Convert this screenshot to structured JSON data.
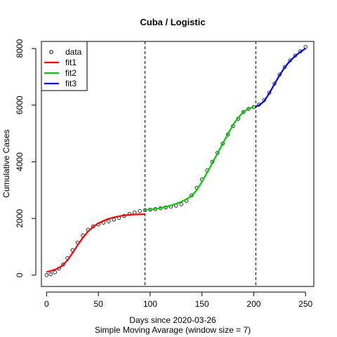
{
  "chart_data": {
    "type": "scatter",
    "title": "Cuba / Logistic",
    "xlabel": "Days since 2020-03-26",
    "subtitle": "Simple Moving Avarage (window size = 7)",
    "ylabel": "Cumulative Cases",
    "xlim": [
      -5,
      258
    ],
    "ylim": [
      -400,
      8250
    ],
    "x_ticks": [
      "0",
      "50",
      "100",
      "150",
      "200",
      "250"
    ],
    "y_ticks": [
      "0",
      "2000",
      "4000",
      "6000",
      "8000"
    ],
    "vlines": [
      95,
      202
    ],
    "legend_position": "top-left",
    "legend": [
      {
        "label": "data",
        "kind": "point",
        "color": "#000000"
      },
      {
        "label": "fit1",
        "kind": "line",
        "color": "#ff0000"
      },
      {
        "label": "fit2",
        "kind": "line",
        "color": "#00cd00"
      },
      {
        "label": "fit3",
        "kind": "line",
        "color": "#0000ff"
      }
    ],
    "data_points": {
      "x": [
        0,
        4,
        8,
        12,
        16,
        20,
        25,
        30,
        35,
        40,
        45,
        50,
        55,
        60,
        65,
        70,
        75,
        80,
        85,
        90,
        95,
        100,
        105,
        110,
        115,
        120,
        125,
        130,
        135,
        140,
        145,
        150,
        155,
        160,
        165,
        170,
        175,
        180,
        185,
        190,
        195,
        200,
        205,
        210,
        215,
        220,
        225,
        230,
        235,
        240,
        245,
        250
      ],
      "y": [
        0,
        30,
        100,
        230,
        380,
        600,
        880,
        1150,
        1400,
        1600,
        1720,
        1790,
        1850,
        1900,
        1960,
        2020,
        2090,
        2160,
        2210,
        2260,
        2290,
        2310,
        2330,
        2360,
        2390,
        2420,
        2450,
        2500,
        2620,
        2820,
        3080,
        3380,
        3700,
        4000,
        4320,
        4640,
        4960,
        5260,
        5520,
        5760,
        5870,
        5930,
        6020,
        6180,
        6440,
        6760,
        7080,
        7350,
        7580,
        7750,
        7900,
        8060
      ]
    },
    "series": [
      {
        "name": "fit1",
        "color": "#ff0000",
        "x": [
          0,
          5,
          10,
          15,
          20,
          25,
          30,
          35,
          40,
          45,
          50,
          55,
          60,
          65,
          70,
          75,
          80,
          85,
          90,
          95
        ],
        "y": [
          110,
          160,
          220,
          330,
          520,
          780,
          1060,
          1320,
          1540,
          1710,
          1830,
          1920,
          1990,
          2040,
          2080,
          2110,
          2130,
          2140,
          2145,
          2150
        ]
      },
      {
        "name": "fit2",
        "color": "#00cd00",
        "x": [
          95,
          100,
          105,
          110,
          115,
          120,
          125,
          130,
          135,
          140,
          145,
          150,
          155,
          160,
          165,
          170,
          175,
          180,
          185,
          190,
          195,
          200
        ],
        "y": [
          2310,
          2320,
          2340,
          2370,
          2410,
          2460,
          2520,
          2590,
          2680,
          2800,
          3000,
          3300,
          3620,
          3960,
          4300,
          4640,
          4980,
          5300,
          5560,
          5760,
          5880,
          5940
        ]
      },
      {
        "name": "fit3",
        "color": "#0000ff",
        "x": [
          202,
          206,
          210,
          215,
          220,
          225,
          230,
          235,
          240,
          245,
          250
        ],
        "y": [
          5940,
          6020,
          6140,
          6420,
          6740,
          7060,
          7340,
          7560,
          7740,
          7880,
          8000
        ]
      }
    ]
  }
}
